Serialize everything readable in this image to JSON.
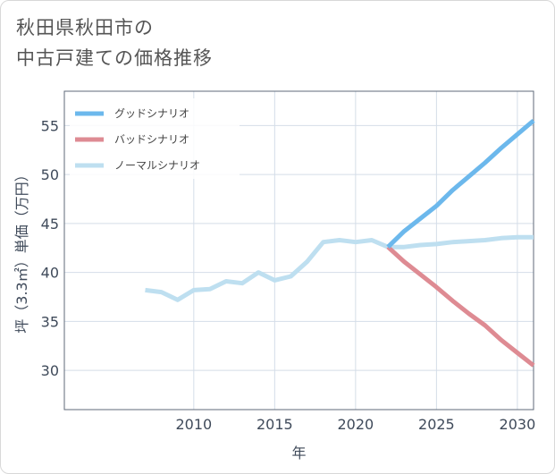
{
  "page": {
    "title_line1": "秋田県秋田市の",
    "title_line2": "中古戸建ての価格推移"
  },
  "chart_data": {
    "type": "line",
    "xlabel": "年",
    "ylabel": "坪（3.3㎡）単価（万円）",
    "xlim": [
      2002,
      2031
    ],
    "ylim": [
      26,
      58.5
    ],
    "xticks": [
      2010,
      2015,
      2020,
      2025,
      2030
    ],
    "yticks": [
      30,
      35,
      40,
      45,
      50,
      55
    ],
    "grid": true,
    "legend_position": "top-left",
    "series": [
      {
        "name": "グッドシナリオ",
        "color": "#6cb8ec",
        "x": [
          2022,
          2023,
          2024,
          2025,
          2026,
          2027,
          2028,
          2029,
          2030,
          2031
        ],
        "values": [
          42.6,
          44.2,
          45.5,
          46.8,
          48.4,
          49.8,
          51.2,
          52.7,
          54.1,
          55.5
        ]
      },
      {
        "name": "バッドシナリオ",
        "color": "#de8b93",
        "x": [
          2022,
          2023,
          2024,
          2025,
          2026,
          2027,
          2028,
          2029,
          2030,
          2031
        ],
        "values": [
          42.6,
          41.1,
          39.8,
          38.5,
          37.1,
          35.8,
          34.6,
          33.1,
          31.8,
          30.5
        ]
      },
      {
        "name": "ノーマルシナリオ",
        "color": "#bedff0",
        "x": [
          2007,
          2008,
          2009,
          2010,
          2011,
          2012,
          2013,
          2014,
          2015,
          2016,
          2017,
          2018,
          2019,
          2020,
          2021,
          2022,
          2023,
          2024,
          2025,
          2026,
          2027,
          2028,
          2029,
          2030,
          2031
        ],
        "values": [
          38.2,
          38.0,
          37.2,
          38.2,
          38.3,
          39.1,
          38.9,
          40.0,
          39.2,
          39.6,
          41.1,
          43.1,
          43.3,
          43.1,
          43.3,
          42.6,
          42.6,
          42.8,
          42.9,
          43.1,
          43.2,
          43.3,
          43.5,
          43.6,
          43.6
        ]
      }
    ]
  }
}
